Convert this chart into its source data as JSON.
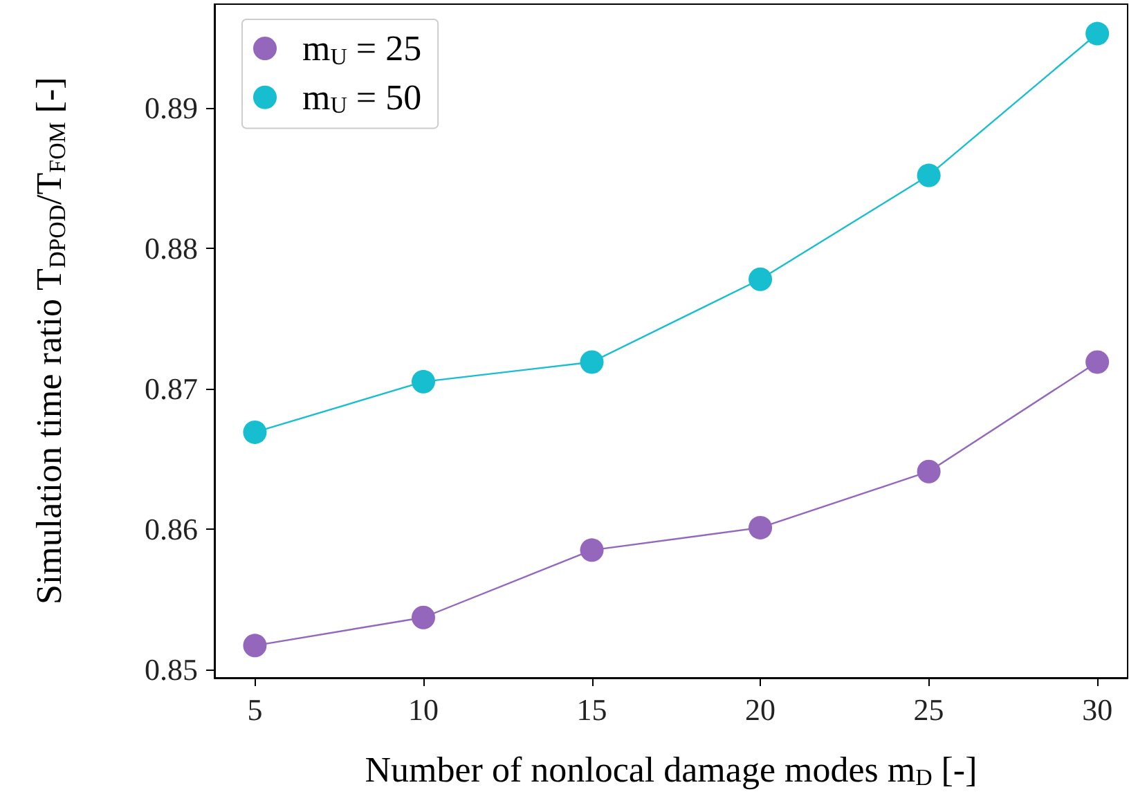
{
  "chart_data": {
    "type": "line",
    "xlabel": "Number of nonlocal damage modes m$_{D}$ [-]",
    "ylabel": "Simulation time ratio T$_{DPOD}$/T$_{FOM}$ [-]",
    "x": [
      5,
      10,
      15,
      20,
      25,
      30
    ],
    "series": [
      {
        "name": "m$_{U}$ = 25",
        "color": "#9467bd",
        "values": [
          0.8517,
          0.8537,
          0.8585,
          0.8601,
          0.8641,
          0.8719
        ]
      },
      {
        "name": "m$_{U}$ = 50",
        "color": "#17becf",
        "values": [
          0.8669,
          0.8705,
          0.8719,
          0.8778,
          0.8852,
          0.8953
        ]
      }
    ],
    "xlim": [
      3.8,
      30.9
    ],
    "xticks": [
      5,
      10,
      15,
      20,
      25,
      30
    ],
    "ylim": [
      0.8494,
      0.8974
    ],
    "yticks": [
      0.85,
      0.86,
      0.87,
      0.88,
      0.89
    ],
    "grid": false,
    "legend": "top left",
    "marker": "circle",
    "line_style": "solid"
  }
}
